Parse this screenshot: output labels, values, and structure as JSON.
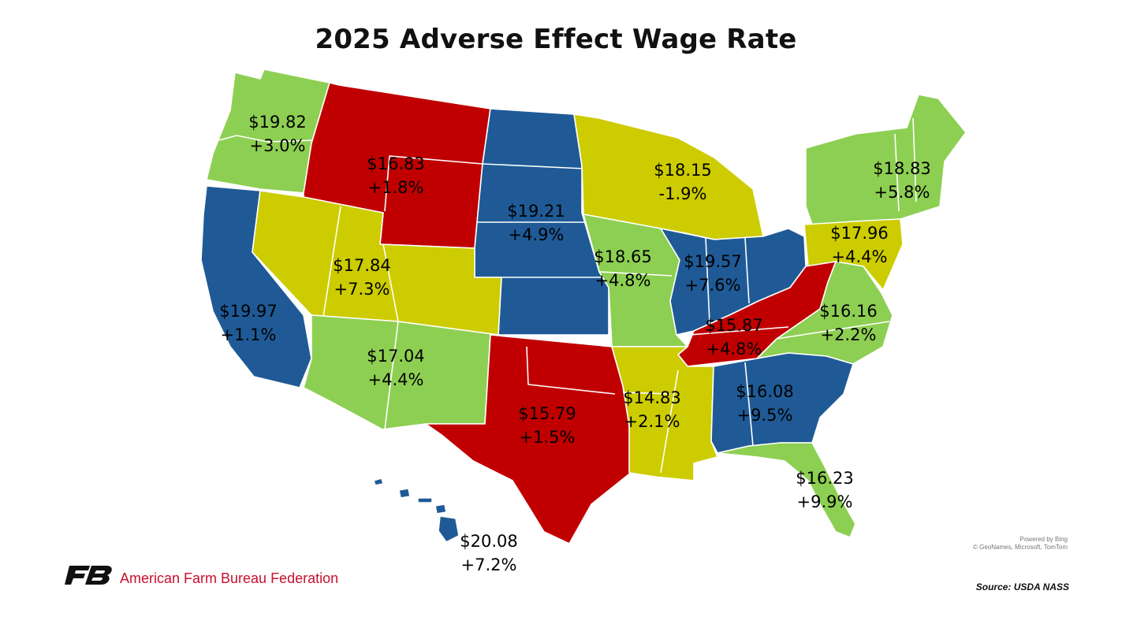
{
  "title": "2025 Adverse Effect Wage Rate",
  "colors": {
    "green": "#8DCF52",
    "red": "#C00000",
    "blue": "#1F5A96",
    "yellow": "#CCCC00",
    "brand_red": "#C8102E",
    "logo_black": "#111111"
  },
  "regions": [
    {
      "id": "pacific-northwest",
      "states": [
        "WA",
        "OR"
      ],
      "color_key": "green",
      "wage": "$19.82",
      "change": "+3.0%"
    },
    {
      "id": "mountain-northern",
      "states": [
        "ID",
        "MT",
        "WY"
      ],
      "color_key": "red",
      "wage": "$16.83",
      "change": "+1.8%"
    },
    {
      "id": "northern-plains",
      "states": [
        "ND",
        "SD",
        "NE",
        "KS"
      ],
      "color_key": "blue",
      "wage": "$19.21",
      "change": "+4.9%"
    },
    {
      "id": "lake",
      "states": [
        "MN",
        "WI",
        "MI"
      ],
      "color_key": "yellow",
      "wage": "$18.15",
      "change": "-1.9%"
    },
    {
      "id": "northeast-one",
      "states": [
        "NY",
        "VT",
        "NH",
        "ME",
        "MA",
        "CT",
        "RI"
      ],
      "color_key": "green",
      "wage": "$18.83",
      "change": "+5.8%"
    },
    {
      "id": "california",
      "states": [
        "CA"
      ],
      "color_key": "blue",
      "wage": "$19.97",
      "change": "+1.1%"
    },
    {
      "id": "mountain-central",
      "states": [
        "NV",
        "UT",
        "CO"
      ],
      "color_key": "yellow",
      "wage": "$17.84",
      "change": "+7.3%"
    },
    {
      "id": "cornbelt-two",
      "states": [
        "IA",
        "MO"
      ],
      "color_key": "green",
      "wage": "$18.65",
      "change": "+4.8%"
    },
    {
      "id": "cornbelt-one",
      "states": [
        "IL",
        "IN",
        "OH"
      ],
      "color_key": "blue",
      "wage": "$19.57",
      "change": "+7.6%"
    },
    {
      "id": "northeast-two",
      "states": [
        "PA",
        "NJ",
        "DE",
        "MD"
      ],
      "color_key": "yellow",
      "wage": "$17.96",
      "change": "+4.4%"
    },
    {
      "id": "appalachian-one",
      "states": [
        "VA",
        "NC"
      ],
      "color_key": "green",
      "wage": "$16.16",
      "change": "+2.2%"
    },
    {
      "id": "appalachian-two",
      "states": [
        "KY",
        "TN",
        "WV"
      ],
      "color_key": "red",
      "wage": "$15.87",
      "change": "+4.8%"
    },
    {
      "id": "mountain-southern",
      "states": [
        "AZ",
        "NM"
      ],
      "color_key": "green",
      "wage": "$17.04",
      "change": "+4.4%"
    },
    {
      "id": "southern-plains",
      "states": [
        "OK",
        "TX"
      ],
      "color_key": "red",
      "wage": "$15.79",
      "change": "+1.5%"
    },
    {
      "id": "delta",
      "states": [
        "AR",
        "LA",
        "MS"
      ],
      "color_key": "yellow",
      "wage": "$14.83",
      "change": "+2.1%"
    },
    {
      "id": "southeast",
      "states": [
        "AL",
        "GA",
        "SC"
      ],
      "color_key": "blue",
      "wage": "$16.08",
      "change": "+9.5%"
    },
    {
      "id": "florida",
      "states": [
        "FL"
      ],
      "color_key": "green",
      "wage": "$16.23",
      "change": "+9.9%"
    },
    {
      "id": "hawaii",
      "states": [
        "HI"
      ],
      "color_key": "blue",
      "wage": "$20.08",
      "change": "+7.2%"
    }
  ],
  "attribution": {
    "powered": "Powered by Bing",
    "credits": "© GeoNames, Microsoft, TomTom"
  },
  "source": "Source: USDA NASS",
  "organization": "American Farm Bureau Federation"
}
